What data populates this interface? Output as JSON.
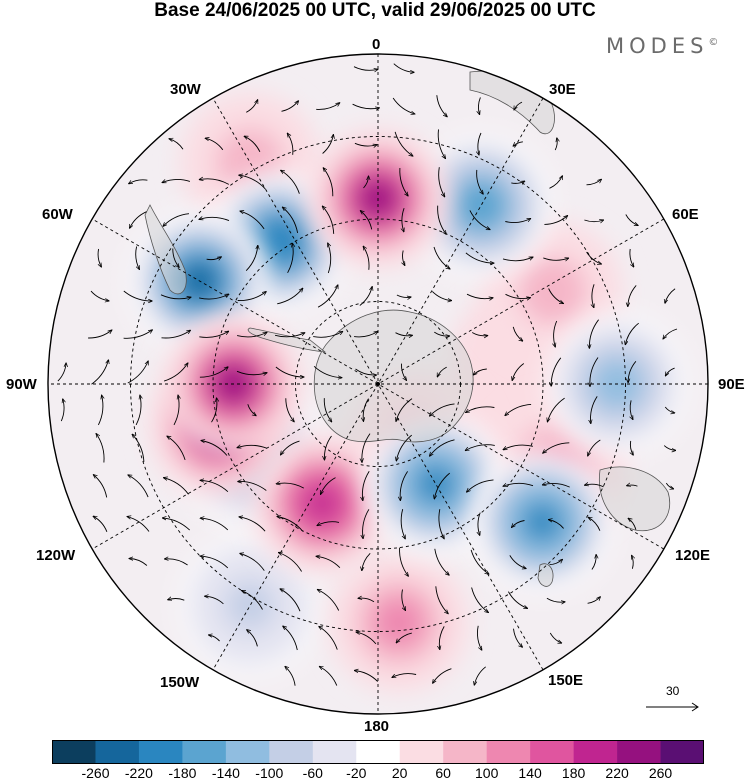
{
  "title": "Base 24/06/2025 00 UTC, valid 29/06/2025 00 UTC",
  "brand": {
    "name": "MODES",
    "mark": "©"
  },
  "longitude_labels": {
    "lon_0": "0",
    "lon_30e": "30E",
    "lon_60e": "60E",
    "lon_90e": "90E",
    "lon_120e": "120E",
    "lon_150e": "150E",
    "lon_180": "180",
    "lon_150w": "150W",
    "lon_120w": "120W",
    "lon_90w": "90W",
    "lon_60w": "60W",
    "lon_30w": "30W"
  },
  "reference_vector": {
    "value": "30"
  },
  "colorbar": {
    "ticks": [
      "-260",
      "-220",
      "-180",
      "-140",
      "-100",
      "-60",
      "-20",
      "20",
      "60",
      "100",
      "140",
      "180",
      "220",
      "260"
    ],
    "colors": [
      "#0c3e5e",
      "#15669c",
      "#2a86c0",
      "#5ba4d0",
      "#90bde0",
      "#c4cfe6",
      "#e4e4f1",
      "#ffffff",
      "#fbdde3",
      "#f5b6c8",
      "#ee87b0",
      "#e0559f",
      "#c02590",
      "#95117f",
      "#5a0f73"
    ]
  },
  "anomalies": [
    {
      "lon": 300,
      "lat": -40,
      "value": -240
    },
    {
      "lon": 325,
      "lat": -48,
      "value": -220
    },
    {
      "lon": 0,
      "lat": -45,
      "value": 220
    },
    {
      "lon": 30,
      "lat": -40,
      "value": -180
    },
    {
      "lon": 330,
      "lat": -28,
      "value": 90
    },
    {
      "lon": 270,
      "lat": -55,
      "value": 250
    },
    {
      "lon": 255,
      "lat": -50,
      "value": 220
    },
    {
      "lon": 240,
      "lat": -55,
      "value": -140
    },
    {
      "lon": 205,
      "lat": -58,
      "value": 200
    },
    {
      "lon": 150,
      "lat": -62,
      "value": -200
    },
    {
      "lon": 130,
      "lat": -38,
      "value": -200
    },
    {
      "lon": 175,
      "lat": -32,
      "value": 120
    },
    {
      "lon": 115,
      "lat": -42,
      "value": 100
    },
    {
      "lon": 145,
      "lat": -73,
      "value": 80
    },
    {
      "lon": 90,
      "lat": -32,
      "value": -140
    },
    {
      "lon": 62,
      "lat": -42,
      "value": 90
    },
    {
      "lon": 80,
      "lat": -55,
      "value": 40
    },
    {
      "lon": 210,
      "lat": -28,
      "value": -80
    },
    {
      "lon": 95,
      "lat": -52,
      "value": 40
    }
  ]
}
